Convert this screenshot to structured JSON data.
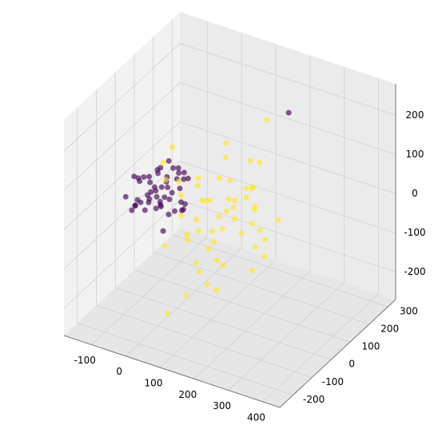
{
  "chart_data": {
    "type": "scatter3d",
    "xlim": [
      -180,
      450
    ],
    "ylim": [
      -270,
      340
    ],
    "zlim": [
      -270,
      280
    ],
    "xticks": [
      -100,
      0,
      100,
      200,
      300,
      400
    ],
    "yticks": [
      -200,
      -100,
      0,
      100,
      200,
      300
    ],
    "zticks": [
      -200,
      -100,
      0,
      100,
      200
    ],
    "grid": true,
    "series": [
      {
        "color": "#440154",
        "x": [
          -120,
          -100,
          -90,
          -80,
          -70,
          -60,
          -50,
          -40,
          -110,
          -95,
          -85,
          -75,
          -65,
          -55,
          -45,
          -35,
          -30,
          -20,
          -10,
          0,
          -130,
          -105,
          -88,
          -72,
          -58,
          -42,
          -25,
          -15,
          -5,
          10,
          -125,
          -98,
          -82,
          -68,
          -52,
          -38,
          -28,
          -18,
          -8,
          20,
          -115,
          -92,
          -78,
          -62,
          -48,
          -33,
          -22,
          -12,
          5,
          30,
          160
        ],
        "y": [
          20,
          -40,
          60,
          -10,
          40,
          -60,
          10,
          80,
          -20,
          30,
          -50,
          70,
          0,
          50,
          -30,
          20,
          90,
          -70,
          40,
          0,
          60,
          -80,
          10,
          30,
          -40,
          50,
          -10,
          70,
          -30,
          20,
          0,
          40,
          -60,
          80,
          10,
          -20,
          60,
          -40,
          30,
          -10,
          -30,
          20,
          -50,
          60,
          0,
          40,
          -70,
          10,
          50,
          -20,
          300
        ],
        "z": [
          10,
          -20,
          30,
          0,
          50,
          -10,
          20,
          40,
          -30,
          10,
          60,
          -40,
          20,
          0,
          30,
          -50,
          10,
          40,
          -20,
          60,
          0,
          20,
          -30,
          40,
          10,
          -10,
          50,
          -40,
          20,
          70,
          30,
          -20,
          10,
          50,
          -30,
          0,
          40,
          -60,
          20,
          -10,
          -40,
          30,
          0,
          20,
          -20,
          60,
          10,
          -30,
          40,
          0,
          140
        ]
      },
      {
        "color": "#fde725",
        "x": [
          20,
          40,
          60,
          80,
          100,
          120,
          140,
          160,
          180,
          200,
          30,
          50,
          70,
          90,
          110,
          130,
          150,
          170,
          190,
          210,
          25,
          45,
          65,
          85,
          105,
          125,
          145,
          165,
          185,
          230,
          35,
          55,
          75,
          95,
          115,
          135,
          155,
          175,
          195,
          250,
          60,
          80,
          100,
          120,
          140,
          90,
          110,
          130,
          70,
          150,
          170,
          200,
          220,
          240,
          100
        ],
        "y": [
          -100,
          -50,
          0,
          50,
          100,
          150,
          -120,
          -80,
          -20,
          40,
          120,
          -150,
          60,
          -60,
          10,
          200,
          -30,
          80,
          -100,
          30,
          -70,
          20,
          140,
          -40,
          70,
          -110,
          0,
          100,
          -60,
          50,
          160,
          -90,
          30,
          -20,
          90,
          -130,
          60,
          -10,
          110,
          -40,
          -180,
          220,
          -160,
          180,
          -200,
          250,
          -140,
          240,
          -80,
          -50,
          130,
          -200,
          0,
          100,
          -230
        ],
        "z": [
          -60,
          0,
          60,
          -100,
          40,
          -20,
          100,
          -140,
          20,
          80,
          -40,
          140,
          -80,
          10,
          -120,
          50,
          -10,
          120,
          -60,
          30,
          180,
          -150,
          70,
          -30,
          150,
          -90,
          20,
          -170,
          90,
          -50,
          0,
          110,
          -110,
          40,
          -20,
          160,
          -60,
          60,
          -130,
          80,
          200,
          -40,
          120,
          -100,
          50,
          -200,
          0,
          140,
          -180,
          30,
          -80,
          -60,
          100,
          -20,
          -150
        ]
      }
    ]
  }
}
